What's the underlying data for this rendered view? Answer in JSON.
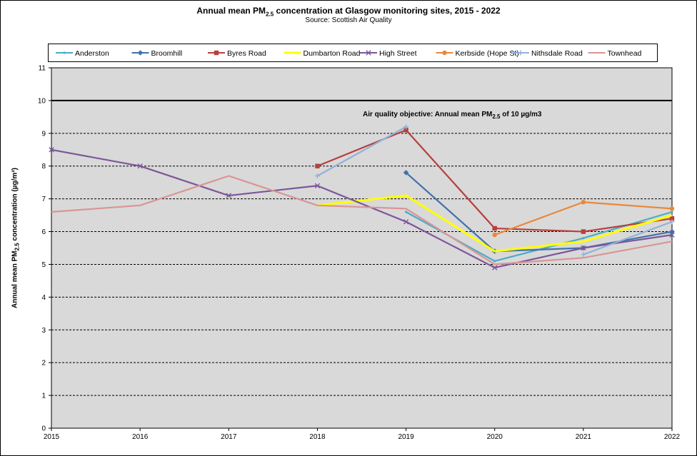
{
  "chart_data": {
    "type": "line",
    "title_main": "Annual mean PM",
    "title_sub": "2.5",
    "title_rest": " concentration at Glasgow monitoring sites, 2015 - 2022",
    "subtitle": "Source: Scottish Air Quality",
    "ylabel_main": "Annual mean PM",
    "ylabel_sub": "2.5",
    "ylabel_rest": " concentration (µg/m³)",
    "annotation_main": "Air quality objective: Annual mean PM",
    "annotation_sub": "2.5",
    "annotation_rest": " of 10 µg/m3",
    "objective_value": 10,
    "ylim": [
      0,
      11
    ],
    "yticks": [
      "0",
      "1",
      "2",
      "3",
      "4",
      "5",
      "6",
      "7",
      "8",
      "9",
      "10",
      "11"
    ],
    "categories": [
      "2015",
      "2016",
      "2017",
      "2018",
      "2019",
      "2020",
      "2021",
      "2022"
    ],
    "series": [
      {
        "name": "Anderston",
        "color": "#4aacc6",
        "marker": "dot",
        "values": [
          null,
          null,
          null,
          null,
          6.6,
          5.1,
          5.8,
          6.6
        ]
      },
      {
        "name": "Broomhill",
        "color": "#4472a8",
        "marker": "diamond",
        "values": [
          null,
          null,
          null,
          null,
          7.8,
          5.4,
          5.5,
          6.0
        ]
      },
      {
        "name": "Byres Road",
        "color": "#b5403d",
        "marker": "square",
        "values": [
          null,
          null,
          null,
          8.0,
          9.1,
          6.1,
          6.0,
          6.4
        ]
      },
      {
        "name": "Dumbarton Road",
        "color": "#ffff00",
        "marker": "none",
        "values": [
          null,
          null,
          null,
          6.8,
          7.1,
          5.4,
          5.7,
          6.5
        ]
      },
      {
        "name": "High Street",
        "color": "#7b579a",
        "marker": "x",
        "values": [
          8.5,
          8.0,
          7.1,
          7.4,
          6.3,
          4.9,
          5.5,
          5.9
        ]
      },
      {
        "name": "Kerbside (Hope St)",
        "color": "#e8883a",
        "marker": "circle",
        "values": [
          null,
          null,
          null,
          null,
          null,
          5.9,
          6.9,
          6.7
        ]
      },
      {
        "name": "Nithsdale Road",
        "color": "#93b1d7",
        "marker": "plus",
        "values": [
          null,
          null,
          null,
          7.7,
          9.2,
          null,
          5.3,
          6.3
        ]
      },
      {
        "name": "Townhead",
        "color": "#d99594",
        "marker": "none",
        "values": [
          6.6,
          6.8,
          7.7,
          6.8,
          6.7,
          5.0,
          5.2,
          5.7
        ]
      }
    ]
  }
}
